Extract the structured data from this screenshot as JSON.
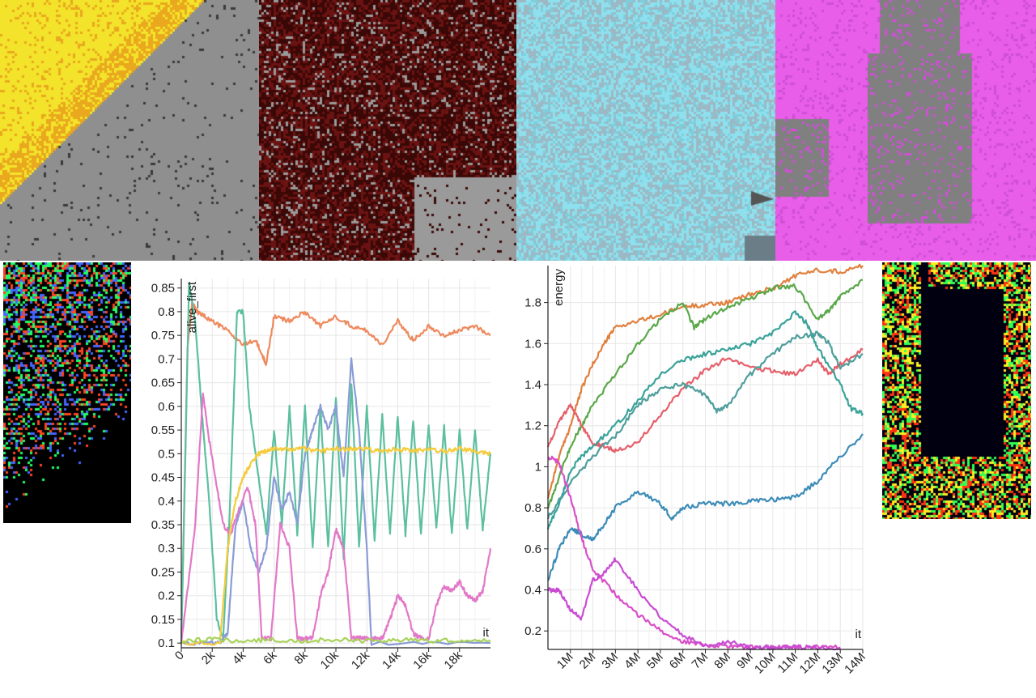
{
  "tiles": [
    {
      "name": "yellow-automaton-snapshot",
      "palette": [
        "#f3e32a",
        "#e9a81e",
        "#8f8f8f",
        "#3a3a3a"
      ]
    },
    {
      "name": "dark-red-automaton-snapshot",
      "palette": [
        "#3a0806",
        "#6b1312",
        "#9a9a9a",
        "#120202"
      ]
    },
    {
      "name": "cyan-automaton-snapshot",
      "palette": [
        "#8fe0ee",
        "#9cb8c4",
        "#7ecfdc",
        "#6b7e88"
      ]
    },
    {
      "name": "magenta-automaton-snapshot",
      "palette": [
        "#e85ee8",
        "#808080",
        "#cf4fd6",
        "#6d6d6d"
      ]
    },
    {
      "name": "noisy-color-snapshot-left",
      "palette": [
        "#000000",
        "#ff4422",
        "#22ff66",
        "#4466ff"
      ]
    },
    {
      "name": "noisy-color-snapshot-right",
      "palette": [
        "#000010",
        "#ff3311",
        "#33ff55",
        "#ffee22"
      ]
    }
  ],
  "chart_data": [
    {
      "type": "line",
      "title": "",
      "xlabel": "it",
      "ylabel": "alive_first",
      "xlim": [
        0,
        20000
      ],
      "ylim": [
        0.09,
        0.87
      ],
      "x_ticks": [
        "0",
        "2k",
        "4k",
        "6k",
        "8k",
        "10k",
        "12k",
        "14k",
        "16k",
        "18k"
      ],
      "x_tick_values": [
        0,
        2000,
        4000,
        6000,
        8000,
        10000,
        12000,
        14000,
        16000,
        18000
      ],
      "y_ticks": [
        "0.85",
        "0.8",
        "0.75",
        "0.7",
        "0.65",
        "0.6",
        "0.55",
        "0.5",
        "0.45",
        "0.4",
        "0.35",
        "0.3",
        "0.25",
        "0.2",
        "0.15",
        "0.1"
      ],
      "y_tick_values": [
        0.85,
        0.8,
        0.75,
        0.7,
        0.65,
        0.6,
        0.55,
        0.5,
        0.45,
        0.4,
        0.35,
        0.3,
        0.25,
        0.2,
        0.15,
        0.1
      ],
      "grid": true,
      "series": [
        {
          "color": "#ee8a5e",
          "x": [
            0,
            400,
            700,
            1000,
            1500,
            2000,
            3000,
            4000,
            4800,
            5200,
            5500,
            6000,
            7000,
            8000,
            9000,
            10000,
            11000,
            12000,
            13000,
            14000,
            15000,
            16000,
            17000,
            18000,
            19000,
            20000
          ],
          "y": [
            0.1,
            0.72,
            0.82,
            0.8,
            0.79,
            0.78,
            0.76,
            0.73,
            0.74,
            0.71,
            0.69,
            0.79,
            0.78,
            0.8,
            0.77,
            0.79,
            0.77,
            0.76,
            0.73,
            0.78,
            0.74,
            0.77,
            0.75,
            0.76,
            0.77,
            0.75
          ]
        },
        {
          "color": "#5bbfa0",
          "x": [
            0,
            500,
            900,
            1300,
            1800,
            2300,
            2700,
            3100,
            3600,
            4000,
            4400,
            5000,
            5500,
            6000,
            6500,
            7000,
            7500,
            8000,
            8500,
            9000,
            9500,
            10000,
            10500,
            11000,
            11500,
            12000,
            12500,
            13000,
            13500,
            14000,
            14500,
            15000,
            15500,
            16000,
            16500,
            17000,
            17500,
            18000,
            18500,
            19000,
            19500,
            20000
          ],
          "y": [
            0.1,
            0.86,
            0.78,
            0.6,
            0.4,
            0.15,
            0.11,
            0.35,
            0.8,
            0.8,
            0.6,
            0.45,
            0.33,
            0.55,
            0.35,
            0.6,
            0.33,
            0.6,
            0.3,
            0.6,
            0.3,
            0.62,
            0.28,
            0.65,
            0.3,
            0.6,
            0.32,
            0.58,
            0.33,
            0.58,
            0.33,
            0.57,
            0.33,
            0.56,
            0.34,
            0.56,
            0.33,
            0.55,
            0.34,
            0.55,
            0.34,
            0.5
          ]
        },
        {
          "color": "#8a9bd6",
          "x": [
            0,
            1500,
            2500,
            3000,
            3500,
            4000,
            4500,
            5000,
            5500,
            6000,
            6500,
            7000,
            7500,
            8000,
            8500,
            9000,
            9500,
            10000,
            10500,
            11000,
            11500,
            12000,
            12300,
            20000
          ],
          "y": [
            0.1,
            0.1,
            0.1,
            0.12,
            0.35,
            0.4,
            0.3,
            0.25,
            0.3,
            0.45,
            0.38,
            0.42,
            0.35,
            0.5,
            0.55,
            0.6,
            0.55,
            0.6,
            0.45,
            0.7,
            0.55,
            0.3,
            0.1,
            0.1
          ]
        },
        {
          "color": "#e278c8",
          "x": [
            0,
            900,
            1400,
            1700,
            2200,
            2700,
            3200,
            3700,
            4300,
            4800,
            5200,
            5800,
            6400,
            7000,
            7500,
            8000,
            8500,
            9000,
            9500,
            10000,
            10500,
            11000,
            11500,
            12000,
            12500,
            13000,
            13500,
            14000,
            14500,
            15000,
            15500,
            16000,
            16500,
            17000,
            17500,
            18000,
            18500,
            19000,
            19500,
            20000
          ],
          "y": [
            0.1,
            0.35,
            0.63,
            0.55,
            0.45,
            0.35,
            0.33,
            0.38,
            0.43,
            0.35,
            0.11,
            0.11,
            0.35,
            0.3,
            0.11,
            0.11,
            0.11,
            0.2,
            0.25,
            0.34,
            0.3,
            0.11,
            0.11,
            0.11,
            0.11,
            0.11,
            0.15,
            0.2,
            0.18,
            0.12,
            0.11,
            0.11,
            0.18,
            0.22,
            0.21,
            0.23,
            0.2,
            0.19,
            0.21,
            0.3
          ]
        },
        {
          "color": "#f5cc3c",
          "x": [
            0,
            2500,
            3000,
            3500,
            4000,
            4500,
            5000,
            5500,
            6000,
            7000,
            8000,
            9000,
            10000,
            11000,
            12000,
            13000,
            14000,
            15000,
            16000,
            17000,
            18000,
            19000,
            20000
          ],
          "y": [
            0.1,
            0.1,
            0.3,
            0.4,
            0.45,
            0.48,
            0.5,
            0.505,
            0.51,
            0.51,
            0.51,
            0.505,
            0.51,
            0.51,
            0.51,
            0.505,
            0.51,
            0.505,
            0.51,
            0.505,
            0.51,
            0.505,
            0.5
          ]
        },
        {
          "color": "#a8d35a",
          "x": [
            0,
            2000,
            4000,
            6000,
            8000,
            10000,
            12000,
            14000,
            16000,
            18000,
            20000
          ],
          "y": [
            0.105,
            0.108,
            0.104,
            0.107,
            0.105,
            0.108,
            0.104,
            0.107,
            0.105,
            0.106,
            0.106
          ]
        }
      ]
    },
    {
      "type": "line",
      "title": "",
      "xlabel": "it",
      "ylabel": "energy",
      "xlim": [
        0,
        14000000
      ],
      "ylim": [
        0.11,
        1.98
      ],
      "x_ticks": [
        "1M",
        "2M",
        "3M",
        "4M",
        "5M",
        "6M",
        "7M",
        "8M",
        "9M",
        "10M",
        "11M",
        "12M",
        "13M",
        "14M"
      ],
      "x_tick_values": [
        1000000,
        2000000,
        3000000,
        4000000,
        5000000,
        6000000,
        7000000,
        8000000,
        9000000,
        10000000,
        11000000,
        12000000,
        13000000,
        14000000
      ],
      "y_ticks": [
        "1.8",
        "1.6",
        "1.4",
        "1.2",
        "1",
        "0.8",
        "0.6",
        "0.4",
        "0.2"
      ],
      "y_tick_values": [
        1.8,
        1.6,
        1.4,
        1.2,
        1.0,
        0.8,
        0.6,
        0.4,
        0.2
      ],
      "grid": true,
      "series": [
        {
          "color": "#e0803e",
          "x": [
            0,
            500000,
            1000000,
            1500000,
            2000000,
            2500000,
            3000000,
            4000000,
            5000000,
            6000000,
            7000000,
            8000000,
            9000000,
            10000000,
            11000000,
            12000000,
            13000000,
            14000000
          ],
          "y": [
            0.85,
            1.05,
            1.2,
            1.38,
            1.5,
            1.6,
            1.68,
            1.71,
            1.74,
            1.78,
            1.79,
            1.8,
            1.84,
            1.87,
            1.93,
            1.96,
            1.95,
            1.98
          ]
        },
        {
          "color": "#5aa84a",
          "x": [
            0,
            500000,
            1000000,
            1500000,
            2000000,
            3000000,
            4000000,
            5000000,
            6000000,
            6500000,
            7000000,
            8000000,
            9000000,
            10000000,
            11000000,
            12000000,
            12500000,
            13000000,
            14000000
          ],
          "y": [
            0.8,
            0.95,
            1.1,
            1.2,
            1.3,
            1.45,
            1.6,
            1.72,
            1.8,
            1.68,
            1.72,
            1.78,
            1.82,
            1.87,
            1.88,
            1.72,
            1.76,
            1.83,
            1.91
          ]
        },
        {
          "color": "#e5606a",
          "x": [
            0,
            500000,
            1000000,
            1500000,
            2000000,
            2500000,
            3000000,
            4000000,
            5000000,
            6000000,
            7000000,
            8000000,
            9000000,
            10000000,
            11000000,
            12000000,
            12500000,
            13000000,
            14000000
          ],
          "y": [
            1.1,
            1.22,
            1.3,
            1.2,
            1.12,
            1.1,
            1.08,
            1.12,
            1.25,
            1.38,
            1.47,
            1.53,
            1.48,
            1.47,
            1.45,
            1.52,
            1.45,
            1.5,
            1.57
          ]
        },
        {
          "color": "#3aa39a",
          "x": [
            0,
            500000,
            1000000,
            1500000,
            2000000,
            3000000,
            4000000,
            5000000,
            6000000,
            7000000,
            8000000,
            9000000,
            10000000,
            11000000,
            11500000,
            12000000,
            13000000,
            13500000,
            14000000
          ],
          "y": [
            0.7,
            0.82,
            0.98,
            1.05,
            1.1,
            1.2,
            1.32,
            1.45,
            1.52,
            1.55,
            1.57,
            1.6,
            1.65,
            1.75,
            1.7,
            1.58,
            1.4,
            1.28,
            1.26
          ]
        },
        {
          "color": "#4e9e9c",
          "x": [
            0,
            1000000,
            2000000,
            3000000,
            4000000,
            5000000,
            6000000,
            7000000,
            7500000,
            8000000,
            9000000,
            10000000,
            11000000,
            12000000,
            12500000,
            13000000,
            14000000
          ],
          "y": [
            0.75,
            0.92,
            1.05,
            1.15,
            1.3,
            1.38,
            1.4,
            1.35,
            1.27,
            1.3,
            1.45,
            1.55,
            1.63,
            1.65,
            1.6,
            1.48,
            1.55
          ]
        },
        {
          "color": "#3d8cb8",
          "x": [
            0,
            500000,
            1000000,
            1500000,
            2000000,
            2500000,
            3000000,
            4000000,
            5000000,
            5500000,
            6000000,
            7000000,
            8000000,
            9000000,
            10000000,
            11000000,
            12000000,
            13000000,
            14000000
          ],
          "y": [
            0.45,
            0.6,
            0.7,
            0.67,
            0.65,
            0.72,
            0.8,
            0.88,
            0.82,
            0.75,
            0.8,
            0.82,
            0.82,
            0.83,
            0.84,
            0.85,
            0.93,
            1.05,
            1.16
          ]
        },
        {
          "color": "#d94fc8",
          "x": [
            0,
            500000,
            1000000,
            1500000,
            2000000,
            3000000,
            4000000,
            5000000,
            6000000,
            7000000,
            8000000,
            9000000,
            10000000,
            11000000,
            12000000,
            13000000
          ],
          "y": [
            1.05,
            1.02,
            0.85,
            0.65,
            0.5,
            0.38,
            0.28,
            0.2,
            0.15,
            0.13,
            0.125,
            0.12,
            0.12,
            0.12,
            0.12,
            0.12
          ]
        },
        {
          "color": "#c94bd4",
          "x": [
            0,
            500000,
            1000000,
            1500000,
            2000000,
            2500000,
            3000000,
            4000000,
            5000000,
            6000000,
            7000000,
            8000000,
            9000000,
            10000000,
            11000000,
            12000000,
            13000000
          ],
          "y": [
            0.4,
            0.4,
            0.3,
            0.26,
            0.45,
            0.48,
            0.55,
            0.4,
            0.27,
            0.18,
            0.13,
            0.15,
            0.12,
            0.12,
            0.12,
            0.12,
            0.12
          ]
        }
      ]
    }
  ]
}
